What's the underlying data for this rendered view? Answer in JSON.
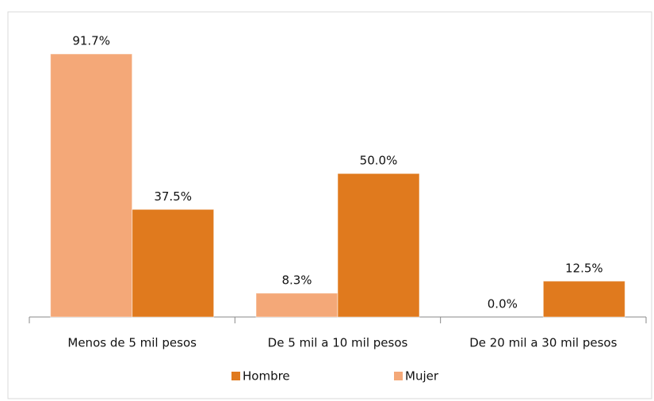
{
  "chart_data": {
    "type": "bar",
    "categories": [
      "Menos de 5 mil pesos",
      "De 5 mil a 10 mil pesos",
      "De 20 mil a 30 mil pesos"
    ],
    "series": [
      {
        "name": "Mujer",
        "color": "#f4a878",
        "values": [
          91.7,
          8.3,
          0.0
        ],
        "value_labels": [
          "91.7%",
          "8.3%",
          "0.0%"
        ]
      },
      {
        "name": "Hombre",
        "color": "#e07a1e",
        "values": [
          37.5,
          50.0,
          12.5
        ],
        "value_labels": [
          "37.5%",
          "50.0%",
          "12.5%"
        ]
      }
    ],
    "ylim": [
      0,
      100
    ],
    "legend": "bottom"
  }
}
